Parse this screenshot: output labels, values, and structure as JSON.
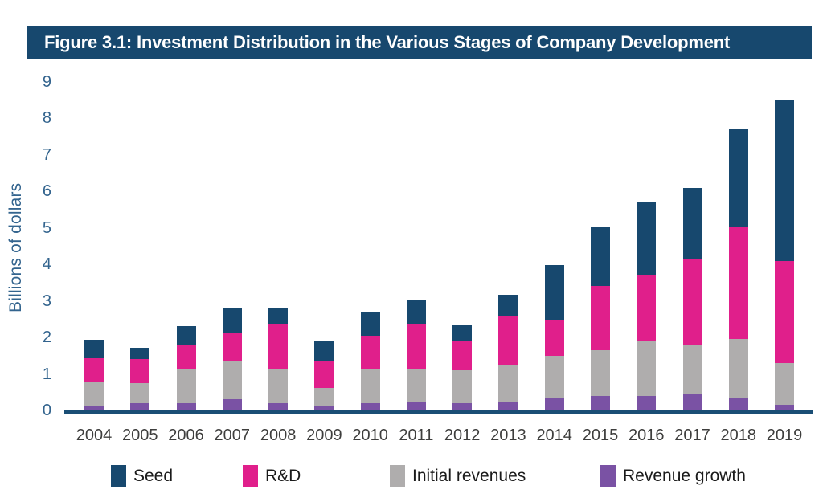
{
  "banner": {
    "title": "Figure 3.1: Investment Distribution in the Various Stages of Company Development",
    "bg_color": "#17486E",
    "text_color": "#FFFFFF"
  },
  "chart_data": {
    "type": "bar",
    "stacked": true,
    "title": "Figure 3.1: Investment Distribution in the Various Stages of Company Development",
    "ylabel": "Billions of dollars",
    "xlabel": "",
    "ylim": [
      0,
      9
    ],
    "yticks": [
      0,
      1,
      2,
      3,
      4,
      5,
      6,
      7,
      8,
      9
    ],
    "grid": false,
    "legend_position": "bottom",
    "categories": [
      "2004",
      "2005",
      "2006",
      "2007",
      "2008",
      "2009",
      "2010",
      "2011",
      "2012",
      "2013",
      "2014",
      "2015",
      "2016",
      "2017",
      "2018",
      "2019"
    ],
    "series": [
      {
        "name": "Seed",
        "color": "#17486E",
        "values": [
          0.5,
          0.3,
          0.5,
          0.7,
          0.45,
          0.55,
          0.65,
          0.65,
          0.45,
          0.6,
          1.5,
          1.6,
          2.0,
          1.95,
          2.7,
          4.4
        ]
      },
      {
        "name": "R&D",
        "color": "#E01F8B",
        "values": [
          0.65,
          0.65,
          0.65,
          0.75,
          1.2,
          0.75,
          0.9,
          1.2,
          0.8,
          1.35,
          1.0,
          1.75,
          1.8,
          2.35,
          3.05,
          2.8
        ]
      },
      {
        "name": "Initial revenues",
        "color": "#AFADAD",
        "values": [
          0.65,
          0.55,
          0.95,
          1.05,
          0.95,
          0.5,
          0.95,
          0.9,
          0.9,
          1.0,
          1.15,
          1.25,
          1.5,
          1.35,
          1.6,
          1.15
        ]
      },
      {
        "name": "Revenue growth",
        "color": "#7A52A4",
        "values": [
          0.1,
          0.2,
          0.2,
          0.3,
          0.2,
          0.1,
          0.2,
          0.25,
          0.2,
          0.25,
          0.35,
          0.4,
          0.4,
          0.45,
          0.35,
          0.15
        ]
      }
    ],
    "totals": [
      1.9,
      1.7,
      2.3,
      2.8,
      2.8,
      1.9,
      2.7,
      3.0,
      2.35,
      3.2,
      4.0,
      5.0,
      5.7,
      6.1,
      7.7,
      8.5
    ]
  },
  "axis": {
    "tick_color": "#33648E",
    "x_label_color": "#3E3E3D",
    "line_color": "#1A4E75"
  }
}
